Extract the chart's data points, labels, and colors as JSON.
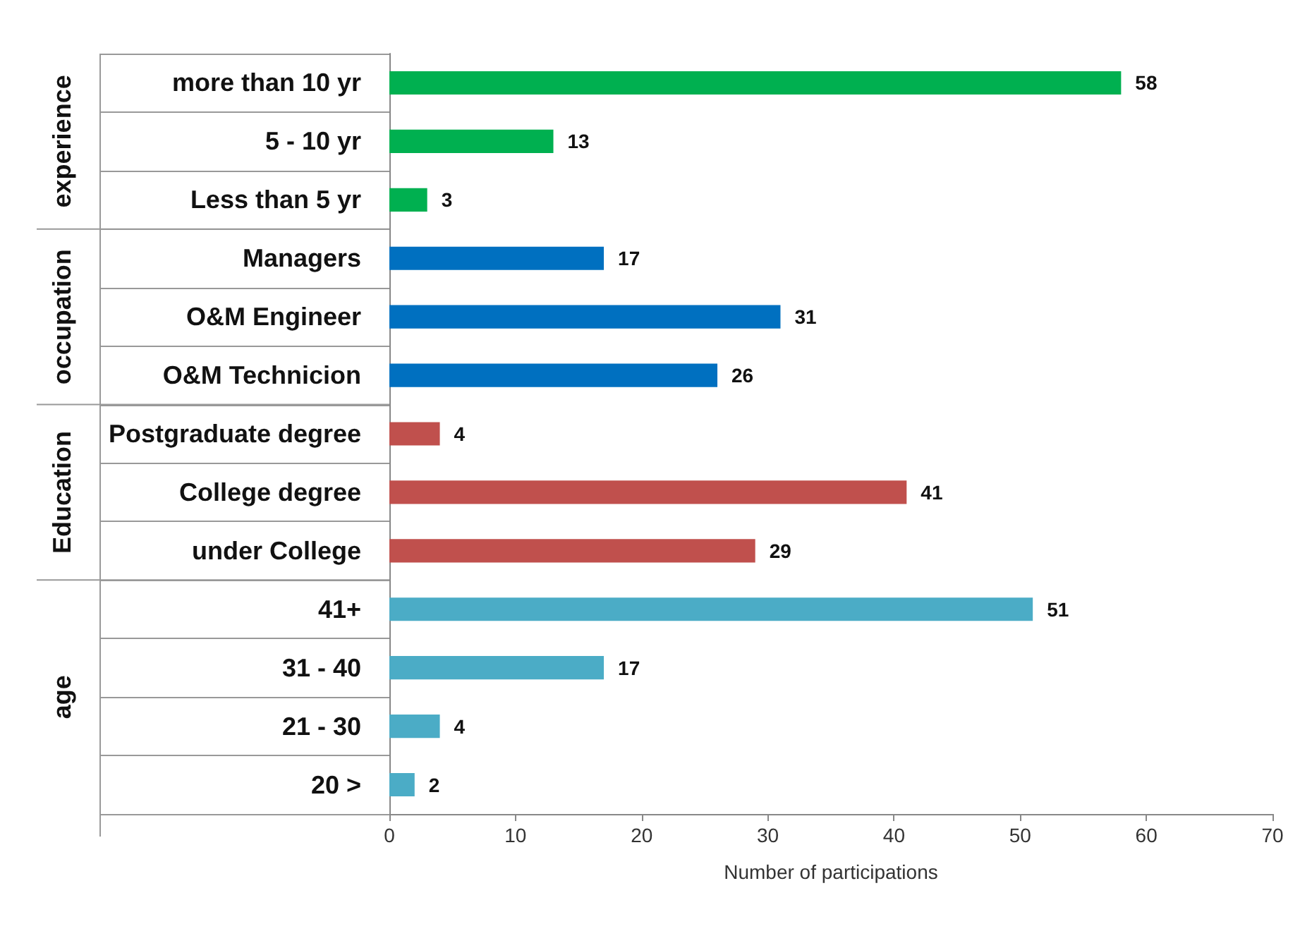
{
  "chart_data": {
    "type": "bar",
    "orientation": "horizontal",
    "xlabel": "Number of participations",
    "annotations": [
      "experience",
      "occupation",
      "Education",
      "age"
    ],
    "categories": [
      "more than 10 yr",
      "5 - 10 yr",
      "Less than 5 yr",
      "Managers",
      "O&M Engineer",
      "O&M Technicion",
      "Postgraduate degree",
      "College degree",
      "under College",
      "41+",
      "31 - 40",
      "21 - 30",
      "20 >"
    ],
    "values": [
      58,
      13,
      3,
      17,
      31,
      26,
      4,
      41,
      29,
      51,
      17,
      4,
      2
    ],
    "colors": [
      "#00b050",
      "#00b050",
      "#00b050",
      "#0070c0",
      "#0070c0",
      "#0070c0",
      "#c0504d",
      "#c0504d",
      "#c0504d",
      "#4bacc6",
      "#4bacc6",
      "#4bacc6",
      "#4bacc6"
    ],
    "xlim": [
      0,
      70
    ],
    "xticks": [
      0,
      10,
      20,
      30,
      40,
      50,
      60,
      70
    ],
    "data_labels": true
  }
}
